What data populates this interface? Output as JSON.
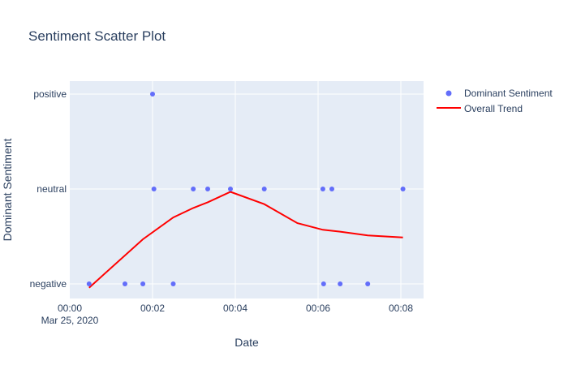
{
  "chart_data": {
    "type": "scatter",
    "title": "Sentiment Scatter Plot",
    "xlabel": "Date",
    "ylabel": "Dominant Sentiment",
    "x_date": "Mar 25, 2020",
    "x_ticks": [
      "00:00",
      "00:02",
      "00:04",
      "00:06",
      "00:08"
    ],
    "y_categories": [
      "negative",
      "neutral",
      "positive"
    ],
    "grid": true,
    "legend_position": "top-right",
    "series": [
      {
        "name": "Dominant Sentiment",
        "kind": "markers",
        "color": "#636efa",
        "points": [
          {
            "x": "00:00:28",
            "y": "negative"
          },
          {
            "x": "00:01:20",
            "y": "negative"
          },
          {
            "x": "00:01:46",
            "y": "negative"
          },
          {
            "x": "00:02:00",
            "y": "positive"
          },
          {
            "x": "00:02:02",
            "y": "neutral"
          },
          {
            "x": "00:02:30",
            "y": "negative"
          },
          {
            "x": "00:02:59",
            "y": "neutral"
          },
          {
            "x": "00:03:20",
            "y": "neutral"
          },
          {
            "x": "00:03:53",
            "y": "neutral"
          },
          {
            "x": "00:04:42",
            "y": "neutral"
          },
          {
            "x": "00:06:07",
            "y": "neutral"
          },
          {
            "x": "00:06:08",
            "y": "negative"
          },
          {
            "x": "00:06:20",
            "y": "neutral"
          },
          {
            "x": "00:06:32",
            "y": "negative"
          },
          {
            "x": "00:07:12",
            "y": "negative"
          },
          {
            "x": "00:08:03",
            "y": "neutral"
          }
        ]
      },
      {
        "name": "Overall Trend",
        "kind": "line",
        "color": "#ff0000",
        "points": [
          {
            "x": "00:00:28",
            "y": -0.04
          },
          {
            "x": "00:01:46",
            "y": 0.47
          },
          {
            "x": "00:02:30",
            "y": 0.7
          },
          {
            "x": "00:02:59",
            "y": 0.8
          },
          {
            "x": "00:03:20",
            "y": 0.86
          },
          {
            "x": "00:03:53",
            "y": 0.97
          },
          {
            "x": "00:04:42",
            "y": 0.84
          },
          {
            "x": "00:05:30",
            "y": 0.64
          },
          {
            "x": "00:06:07",
            "y": 0.57
          },
          {
            "x": "00:06:32",
            "y": 0.55
          },
          {
            "x": "00:07:12",
            "y": 0.51
          },
          {
            "x": "00:08:03",
            "y": 0.49
          }
        ]
      }
    ]
  }
}
